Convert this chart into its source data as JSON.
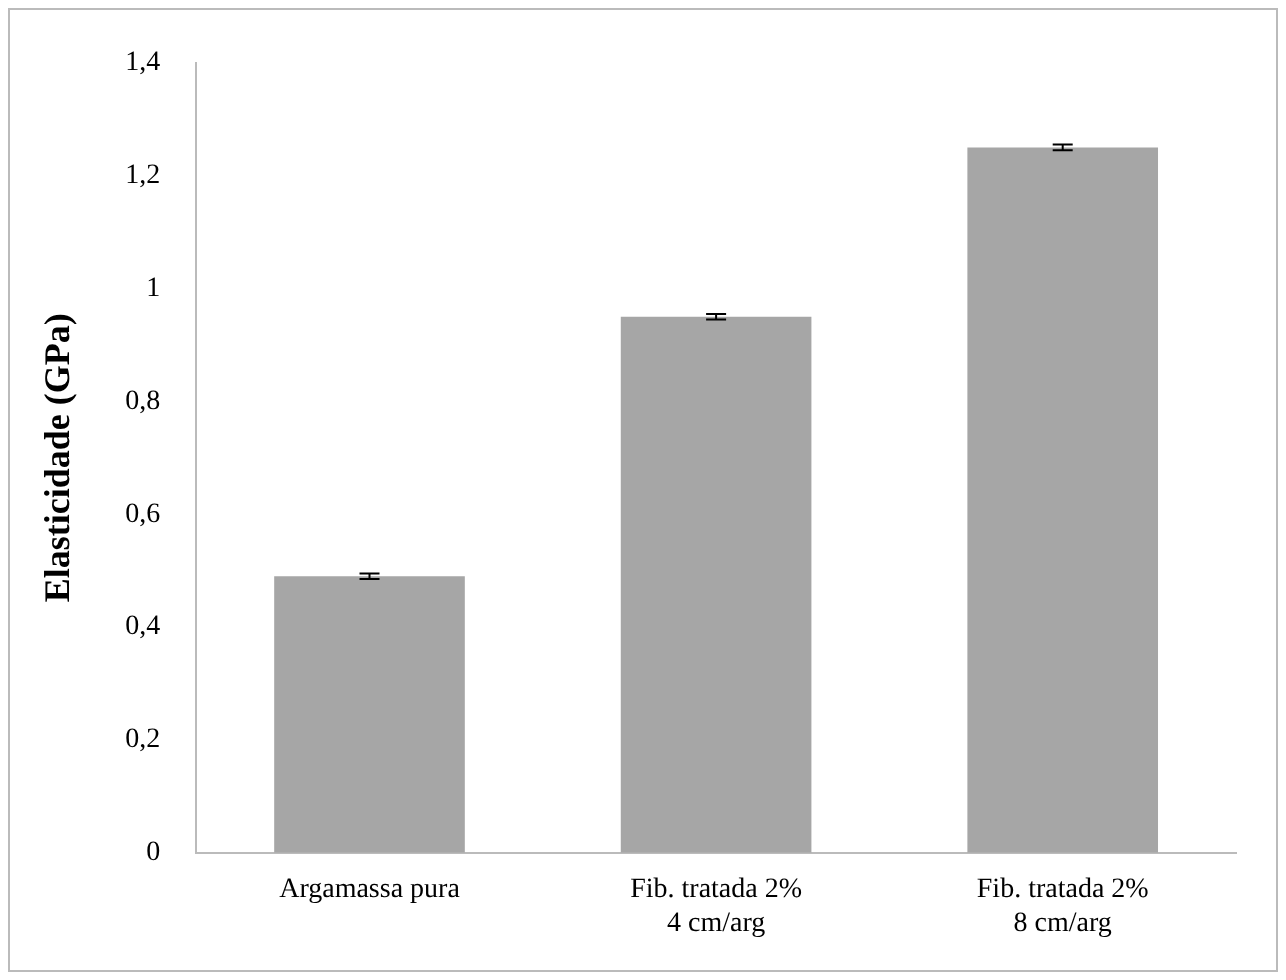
{
  "chart_data": {
    "type": "bar",
    "ylabel": "Elasticidade (GPa)",
    "categories": [
      "Argamassa pura",
      "Fib. tratada 2%\n4 cm/arg",
      "Fib. tratada 2%\n8 cm/arg"
    ],
    "values": [
      0.49,
      0.95,
      1.25
    ],
    "errors": [
      0.005,
      0.005,
      0.005
    ],
    "color": "#a6a6a6",
    "ylim": [
      0,
      1.4
    ],
    "yticks": [
      0,
      {
        "value": 0.2,
        "label": "0,2"
      },
      {
        "value": 0.4,
        "label": "0,4"
      },
      {
        "value": 0.6,
        "label": "0,6"
      },
      {
        "value": 0.8,
        "label": "0,8"
      },
      1,
      {
        "value": 1.2,
        "label": "1,2"
      },
      {
        "value": 1.4,
        "label": "1,4"
      }
    ],
    "grid": false,
    "legend": false
  }
}
